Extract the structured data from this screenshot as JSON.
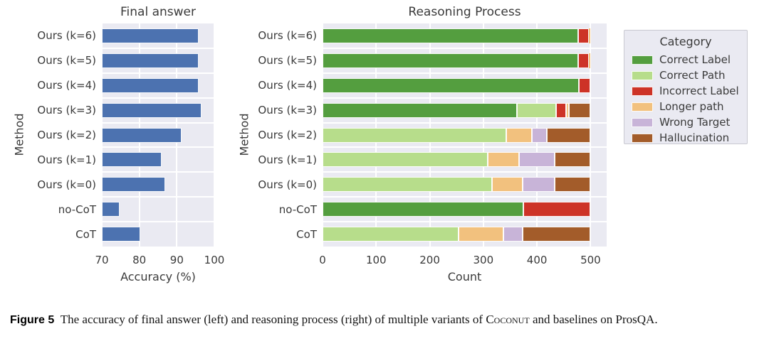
{
  "colors": {
    "bar_blue": "#4c72b0",
    "plot_bg": "#eaeaf2",
    "grid": "#ffffff"
  },
  "chart_data": [
    {
      "type": "bar",
      "orientation": "horizontal",
      "title": "Final answer",
      "xlabel": "Accuracy (%)",
      "ylabel": "Method",
      "categories": [
        "Ours (k=6)",
        "Ours (k=5)",
        "Ours (k=4)",
        "Ours (k=3)",
        "Ours (k=2)",
        "Ours (k=1)",
        "Ours (k=0)",
        "no-CoT",
        "CoT"
      ],
      "values": [
        95.9,
        95.9,
        95.9,
        96.5,
        91.3,
        85.9,
        86.9,
        74.7,
        80.3
      ],
      "xlim": [
        70,
        100
      ],
      "xticks": [
        70,
        80,
        90,
        100
      ],
      "xtick_labels": [
        "70",
        "80",
        "90",
        "100"
      ],
      "grid": true,
      "bar_color": "#4c72b0"
    },
    {
      "type": "bar",
      "stacked": true,
      "orientation": "horizontal",
      "title": "Reasoning Process",
      "xlabel": "Count",
      "ylabel": "Method",
      "categories": [
        "Ours (k=6)",
        "Ours (k=5)",
        "Ours (k=4)",
        "Ours (k=3)",
        "Ours (k=2)",
        "Ours (k=1)",
        "Ours (k=0)",
        "no-CoT",
        "CoT"
      ],
      "series": [
        {
          "name": "Correct Label",
          "color": "#549e3f",
          "values": [
            477,
            477,
            478,
            362,
            0,
            0,
            0,
            374,
            0
          ]
        },
        {
          "name": "Correct Path",
          "color": "#b7dd8b",
          "values": [
            0,
            0,
            0,
            74,
            343,
            308,
            316,
            0,
            254
          ]
        },
        {
          "name": "Incorrect Label",
          "color": "#cd3327",
          "values": [
            20,
            20,
            22,
            18,
            0,
            0,
            0,
            126,
            0
          ]
        },
        {
          "name": "Longer path",
          "color": "#f2c17e",
          "values": [
            3,
            3,
            0,
            6,
            47,
            59,
            57,
            0,
            83
          ]
        },
        {
          "name": "Wrong Target",
          "color": "#c8b4d8",
          "values": [
            0,
            0,
            0,
            0,
            29,
            66,
            60,
            0,
            36
          ]
        },
        {
          "name": "Hallucination",
          "color": "#a35c2a",
          "values": [
            0,
            0,
            0,
            40,
            81,
            67,
            67,
            0,
            127
          ]
        }
      ],
      "xlim": [
        0,
        530
      ],
      "xticks": [
        0,
        100,
        200,
        300,
        400,
        500
      ],
      "xtick_labels": [
        "0",
        "100",
        "200",
        "300",
        "400",
        "500"
      ],
      "grid": true,
      "legend_position": "right"
    }
  ],
  "legend": {
    "title": "Category"
  },
  "caption": {
    "prefix": "Figure 5",
    "body_before": "The accuracy of final answer (left) and reasoning process (right) of multiple variants of ",
    "smallcaps": "Coconut",
    "body_after": " and baselines on ProsQA."
  }
}
